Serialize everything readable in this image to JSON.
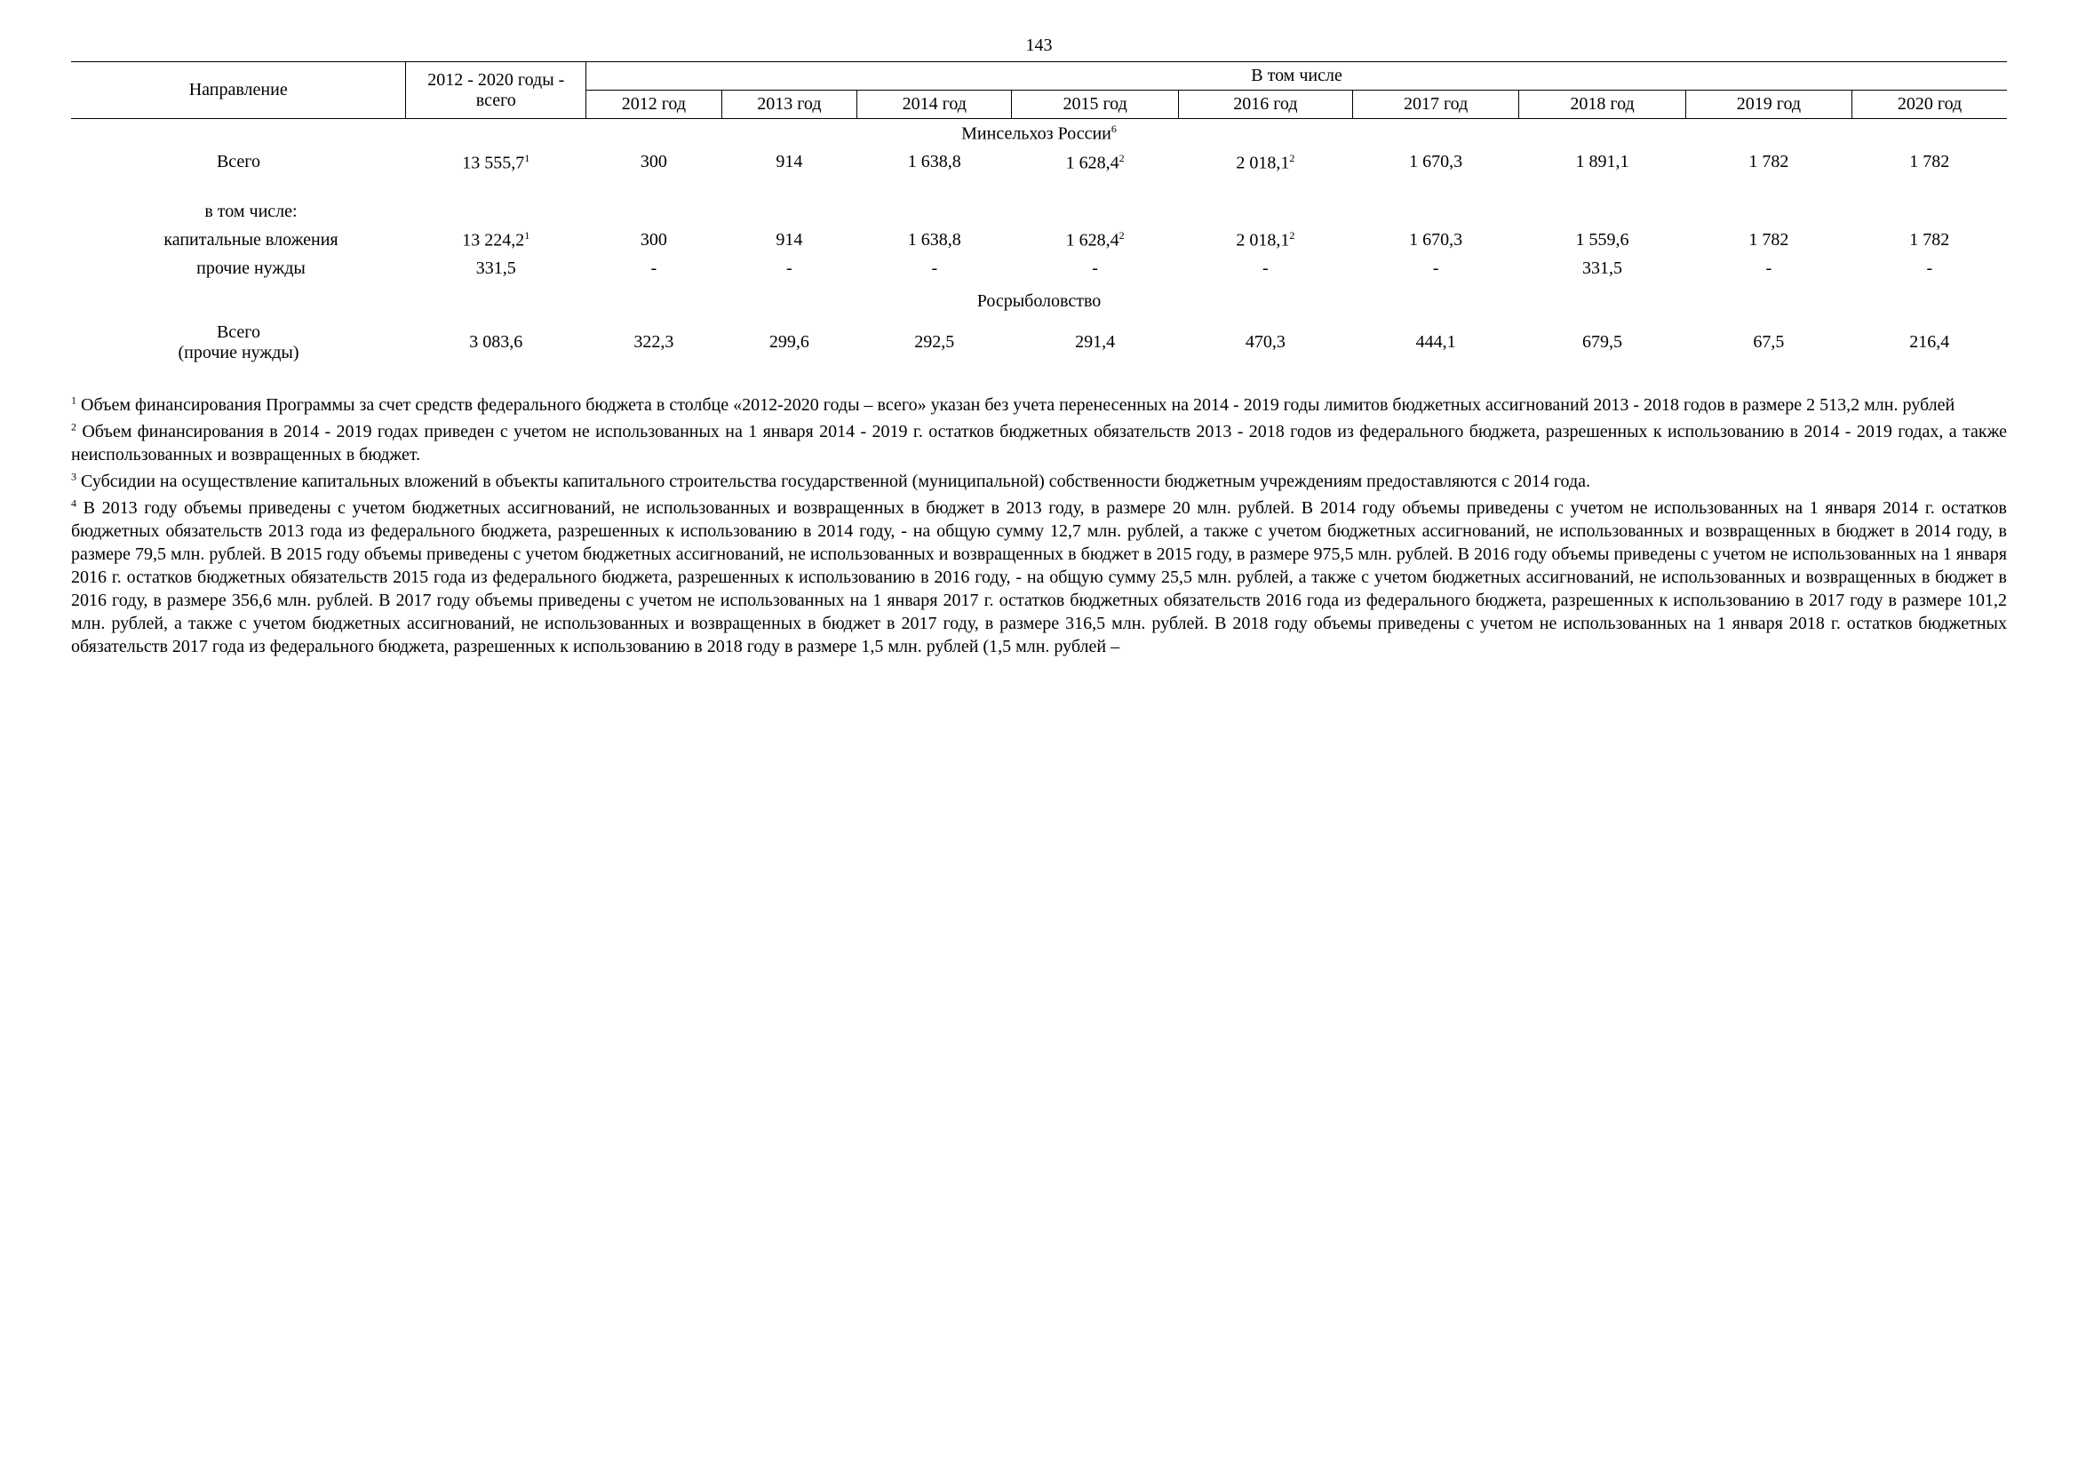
{
  "page_number": "143",
  "table": {
    "layout": {
      "font_family": "Times New Roman",
      "header_fontsize_pt": 15,
      "body_fontsize_pt": 15,
      "border_color": "#000000",
      "background_color": "#ffffff",
      "text_color": "#000000",
      "col_widths_pct": [
        17.3,
        9.3,
        7.0,
        7.0,
        8.0,
        8.6,
        9.0,
        8.6,
        8.6,
        8.6,
        8.0
      ],
      "header_align": "center",
      "label_align": "left",
      "value_align": "center"
    },
    "header": {
      "col1": "Направление",
      "col2": "2012 - 2020 годы - всего",
      "group": "В том числе",
      "years": [
        "2012 год",
        "2013 год",
        "2014 год",
        "2015 год",
        "2016 год",
        "2017 год",
        "2018 год",
        "2019 год",
        "2020 год"
      ]
    },
    "sections": [
      {
        "title": "Минсельхоз России",
        "title_sup": "6",
        "rows": [
          {
            "label": "Всего",
            "indent": 0,
            "total": "13 555,7",
            "total_sup": "1",
            "cells": [
              {
                "v": "300"
              },
              {
                "v": "914"
              },
              {
                "v": "1 638,8"
              },
              {
                "v": "1 628,4",
                "sup": "2"
              },
              {
                "v": "2 018,1",
                "sup": "2"
              },
              {
                "v": "1 670,3"
              },
              {
                "v": "1 891,1"
              },
              {
                "v": "1 782"
              },
              {
                "v": "1 782"
              }
            ]
          },
          {
            "label": "в том числе:",
            "indent": 1,
            "total": "",
            "cells": []
          },
          {
            "label": "капитальные вложения",
            "indent": 1,
            "total": "13 224,2",
            "total_sup": "1",
            "cells": [
              {
                "v": "300"
              },
              {
                "v": "914"
              },
              {
                "v": "1 638,8"
              },
              {
                "v": "1 628,4",
                "sup": "2"
              },
              {
                "v": "2 018,1",
                "sup": "2"
              },
              {
                "v": "1 670,3"
              },
              {
                "v": "1 559,6"
              },
              {
                "v": "1 782"
              },
              {
                "v": "1 782"
              }
            ]
          },
          {
            "label": "прочие нужды",
            "indent": 1,
            "total": "331,5",
            "cells": [
              {
                "v": "-"
              },
              {
                "v": "-"
              },
              {
                "v": "-"
              },
              {
                "v": "-"
              },
              {
                "v": "-"
              },
              {
                "v": "-"
              },
              {
                "v": "331,5"
              },
              {
                "v": "-"
              },
              {
                "v": "-"
              }
            ]
          }
        ]
      },
      {
        "title": "Росрыболовство",
        "rows": [
          {
            "label": "Всего\n(прочие нужды)",
            "indent": 0,
            "total": "3 083,6",
            "cells": [
              {
                "v": "322,3"
              },
              {
                "v": "299,6"
              },
              {
                "v": "292,5"
              },
              {
                "v": "291,4"
              },
              {
                "v": "470,3"
              },
              {
                "v": "444,1"
              },
              {
                "v": "679,5"
              },
              {
                "v": "67,5"
              },
              {
                "v": "216,4"
              }
            ]
          }
        ]
      }
    ]
  },
  "footnotes": [
    {
      "n": "1",
      "text": "Объем финансирования Программы за счет средств федерального бюджета в столбце «2012-2020 годы – всего» указан без учета перенесенных на 2014 - 2019 годы лимитов бюджетных ассигнований 2013 - 2018 годов в размере 2 513,2 млн. рублей"
    },
    {
      "n": "2",
      "text": "Объем финансирования в 2014 - 2019 годах приведен с учетом не использованных на 1 января 2014 - 2019 г. остатков бюджетных обязательств 2013 - 2018 годов из федерального бюджета, разрешенных к использованию в 2014 - 2019 годах, а также неиспользованных и возвращенных в бюджет."
    },
    {
      "n": "3",
      "text": "Субсидии на осуществление капитальных вложений в объекты капитального строительства государственной (муниципальной) собственности бюджетным учреждениям предоставляются с 2014 года."
    },
    {
      "n": "4",
      "text": "В 2013 году объемы приведены с учетом бюджетных ассигнований, не использованных и возвращенных в бюджет в 2013 году, в размере 20 млн. рублей. В 2014 году объемы приведены с учетом не использованных на 1 января 2014 г. остатков бюджетных обязательств 2013 года из федерального бюджета, разрешенных к использованию в 2014 году, - на общую сумму 12,7 млн. рублей, а также с учетом бюджетных ассигнований, не использованных и возвращенных в бюджет в 2014 году, в размере 79,5 млн. рублей. В 2015 году объемы приведены с учетом бюджетных ассигнований, не использованных и возвращенных в бюджет в 2015 году, в размере 975,5 млн. рублей. В 2016 году объемы приведены с учетом не использованных на 1 января 2016 г. остатков бюджетных обязательств 2015 года из федерального бюджета, разрешенных к использованию в 2016 году, - на общую сумму 25,5 млн. рублей, а также с учетом бюджетных ассигнований, не использованных и возвращенных в бюджет в 2016 году, в размере 356,6 млн. рублей. В 2017 году объемы приведены с учетом не использованных на 1 января 2017 г. остатков бюджетных обязательств 2016 года из федерального бюджета, разрешенных к использованию в 2017 году в размере 101,2 млн. рублей, а также с учетом бюджетных ассигнований, не использованных и возвращенных в бюджет в 2017 году, в размере 316,5 млн. рублей. В 2018 году объемы приведены с учетом не использованных на 1 января 2018 г. остатков бюджетных обязательств 2017 года из федерального бюджета, разрешенных к использованию в 2018 году в размере 1,5 млн. рублей (1,5 млн. рублей –"
    }
  ]
}
